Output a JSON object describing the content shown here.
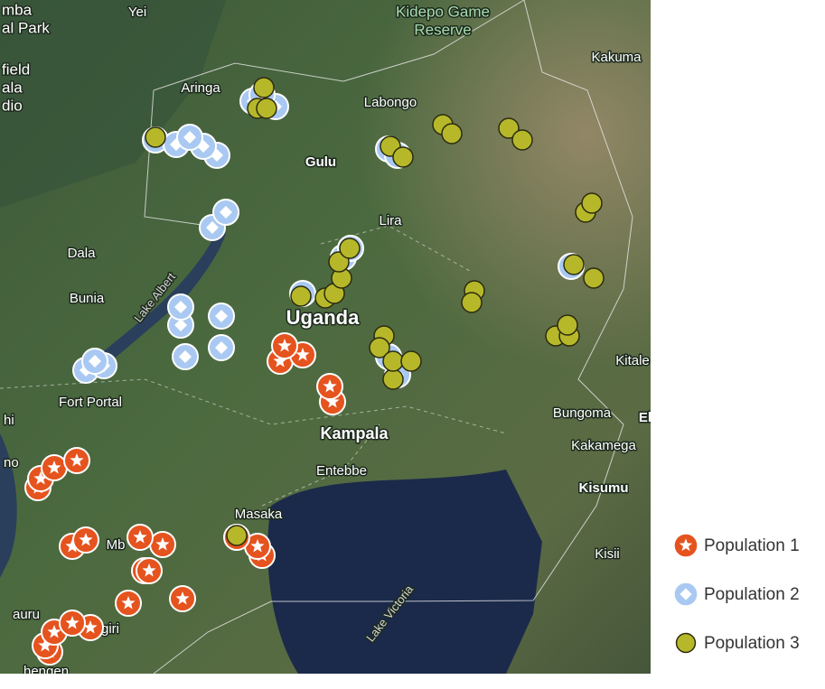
{
  "map": {
    "labels": [
      "mba",
      "al Park",
      "Yei",
      "Kidepo Game",
      "Reserve",
      "Kakuma",
      "field",
      "ala",
      "dio",
      "Aringa",
      "Labongo",
      "Gulu",
      "Lira",
      "Dala",
      "Bunia",
      "Lake Albert",
      "Uganda",
      "Kitale",
      "Fort Portal",
      "Bungoma",
      "El",
      "Kakamega",
      "Kampala",
      "Entebbe",
      "Kisumu",
      "Masaka",
      "Mb",
      "Kisii",
      "Lake Victoria",
      "giri",
      "hengen",
      "hi",
      "no",
      "auru"
    ]
  },
  "legend": {
    "items": [
      "Population 1",
      "Population 2",
      "Population 3"
    ]
  }
}
